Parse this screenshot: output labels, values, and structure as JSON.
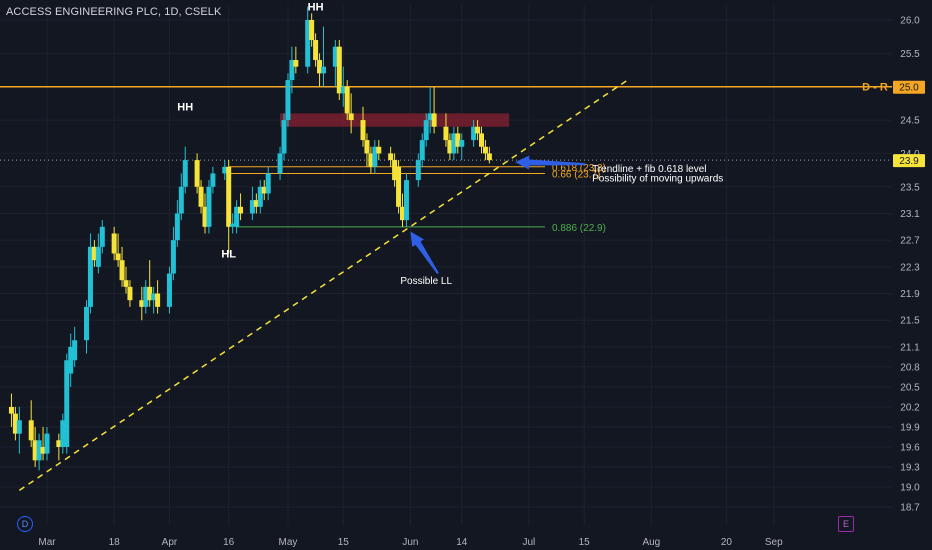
{
  "symbol_title": "ACCESS ENGINEERING PLC, 1D, CSELK",
  "colors": {
    "background": "#131722",
    "bull": "#22c0d4",
    "bear": "#f5e33a",
    "resistance_line": "#f5a623",
    "fib_line": "#f5a623",
    "fib_886_line": "#4caf50",
    "trendline": "#f5e33a",
    "zone": "#7a1f2e",
    "arrow": "#2f5fe6",
    "axis_text": "#b2b5be",
    "price_tag": "#f5a623"
  },
  "badges": {
    "dividend": "D",
    "earnings": "E"
  },
  "chart_data": {
    "type": "candlestick",
    "title": "ACCESS ENGINEERING PLC, 1D, CSELK",
    "y_ticks": [
      "26.0",
      "25.5",
      "24.5",
      "24.0",
      "23.5",
      "23.1",
      "22.7",
      "22.3",
      "21.9",
      "21.5",
      "21.1",
      "20.8",
      "20.5",
      "20.2",
      "19.9",
      "19.6",
      "19.3",
      "19.0",
      "18.7"
    ],
    "x_ticks": [
      "Mar",
      "18",
      "Apr",
      "16",
      "May",
      "15",
      "Jun",
      "14",
      "Jul",
      "15",
      "Aug",
      "20",
      "Sep"
    ],
    "ylim": [
      18.6,
      26.3
    ],
    "x_range": [
      "2024-02-23",
      "2024-09-12"
    ],
    "current_price": "23.9",
    "resistance": {
      "label": "D - R",
      "price": "25.0",
      "value": 25.0
    },
    "fib_levels": [
      {
        "label": "0.618 (23.8)",
        "value": 23.8,
        "color": "#f5a623"
      },
      {
        "label": "0.66 (23.7)",
        "value": 23.7,
        "color": "#f5a623"
      },
      {
        "label": "0.886 (22.9)",
        "value": 22.9,
        "color": "#4caf50"
      }
    ],
    "zone": {
      "from": "2024-04-29",
      "to": "2024-06-26",
      "low": 24.4,
      "high": 24.6
    },
    "trendline": {
      "start": [
        "2024-02-23",
        18.95
      ],
      "end": [
        "2024-07-26",
        25.1
      ]
    },
    "annotations": [
      {
        "text": "HH",
        "date": "2024-04-05",
        "price": 24.7,
        "color": "#ffffff"
      },
      {
        "text": "HL",
        "date": "2024-04-16",
        "price": 22.5,
        "color": "#ffffff"
      },
      {
        "text": "HH",
        "date": "2024-05-08",
        "price": 26.2,
        "color": "#ffffff"
      },
      {
        "text": "Possible LL",
        "date": "2024-06-05",
        "price": 22.1,
        "color": "#ffffff"
      },
      {
        "text": "Trendline + fib 0.618 level",
        "date": "2024-07-17",
        "price": 23.78,
        "color": "#ffffff"
      },
      {
        "text": "Possibility of moving upwards",
        "date": "2024-07-17",
        "price": 23.64,
        "color": "#ffffff"
      }
    ],
    "candles": [
      {
        "d": "2024-02-21",
        "o": 20.2,
        "h": 20.4,
        "l": 19.9,
        "c": 20.1
      },
      {
        "d": "2024-02-22",
        "o": 20.1,
        "h": 20.2,
        "l": 19.7,
        "c": 19.8
      },
      {
        "d": "2024-02-23",
        "o": 19.8,
        "h": 20.2,
        "l": 19.5,
        "c": 20.0
      },
      {
        "d": "2024-02-26",
        "o": 20.0,
        "h": 20.3,
        "l": 19.6,
        "c": 19.7
      },
      {
        "d": "2024-02-27",
        "o": 19.7,
        "h": 19.9,
        "l": 19.3,
        "c": 19.4
      },
      {
        "d": "2024-02-28",
        "o": 19.4,
        "h": 19.8,
        "l": 19.25,
        "c": 19.7
      },
      {
        "d": "2024-02-29",
        "o": 19.6,
        "h": 19.9,
        "l": 19.4,
        "c": 19.5
      },
      {
        "d": "2024-03-01",
        "o": 19.5,
        "h": 19.9,
        "l": 19.4,
        "c": 19.8
      },
      {
        "d": "2024-03-04",
        "o": 19.7,
        "h": 19.8,
        "l": 19.4,
        "c": 19.6
      },
      {
        "d": "2024-03-05",
        "o": 19.6,
        "h": 20.1,
        "l": 19.5,
        "c": 20.0
      },
      {
        "d": "2024-03-06",
        "o": 19.6,
        "h": 21.0,
        "l": 19.5,
        "c": 20.9
      },
      {
        "d": "2024-03-07",
        "o": 20.7,
        "h": 21.3,
        "l": 20.5,
        "c": 21.1
      },
      {
        "d": "2024-03-08",
        "o": 20.9,
        "h": 21.4,
        "l": 20.8,
        "c": 21.2
      },
      {
        "d": "2024-03-11",
        "o": 21.2,
        "h": 21.8,
        "l": 21.0,
        "c": 21.7
      },
      {
        "d": "2024-03-12",
        "o": 21.7,
        "h": 22.8,
        "l": 21.6,
        "c": 22.6
      },
      {
        "d": "2024-03-13",
        "o": 22.6,
        "h": 22.7,
        "l": 22.3,
        "c": 22.4
      },
      {
        "d": "2024-03-14",
        "o": 22.3,
        "h": 22.8,
        "l": 22.2,
        "c": 22.6
      },
      {
        "d": "2024-03-15",
        "o": 22.6,
        "h": 23.0,
        "l": 22.5,
        "c": 22.9
      },
      {
        "d": "2024-03-18",
        "o": 22.8,
        "h": 22.9,
        "l": 22.4,
        "c": 22.5
      },
      {
        "d": "2024-03-19",
        "o": 22.5,
        "h": 22.8,
        "l": 22.3,
        "c": 22.4
      },
      {
        "d": "2024-03-20",
        "o": 22.4,
        "h": 22.6,
        "l": 22.0,
        "c": 22.1
      },
      {
        "d": "2024-03-21",
        "o": 22.1,
        "h": 22.3,
        "l": 21.9,
        "c": 22.0
      },
      {
        "d": "2024-03-22",
        "o": 22.0,
        "h": 22.1,
        "l": 21.7,
        "c": 21.8
      },
      {
        "d": "2024-03-25",
        "o": 21.8,
        "h": 22.0,
        "l": 21.5,
        "c": 21.7
      },
      {
        "d": "2024-03-26",
        "o": 21.7,
        "h": 22.1,
        "l": 21.6,
        "c": 22.0
      },
      {
        "d": "2024-03-27",
        "o": 22.0,
        "h": 22.4,
        "l": 21.7,
        "c": 21.8
      },
      {
        "d": "2024-03-28",
        "o": 21.8,
        "h": 22.0,
        "l": 21.6,
        "c": 21.9
      },
      {
        "d": "2024-03-29",
        "o": 21.9,
        "h": 22.1,
        "l": 21.6,
        "c": 21.7
      },
      {
        "d": "2024-04-01",
        "o": 21.7,
        "h": 22.3,
        "l": 21.6,
        "c": 22.2
      },
      {
        "d": "2024-04-02",
        "o": 22.2,
        "h": 22.9,
        "l": 22.1,
        "c": 22.7
      },
      {
        "d": "2024-04-03",
        "o": 22.7,
        "h": 23.3,
        "l": 22.6,
        "c": 23.1
      },
      {
        "d": "2024-04-04",
        "o": 23.1,
        "h": 23.7,
        "l": 23.0,
        "c": 23.5
      },
      {
        "d": "2024-04-05",
        "o": 23.5,
        "h": 24.1,
        "l": 23.4,
        "c": 23.9
      },
      {
        "d": "2024-04-08",
        "o": 23.9,
        "h": 24.0,
        "l": 23.4,
        "c": 23.5
      },
      {
        "d": "2024-04-09",
        "o": 23.5,
        "h": 23.6,
        "l": 23.1,
        "c": 23.2
      },
      {
        "d": "2024-04-10",
        "o": 23.2,
        "h": 23.4,
        "l": 22.8,
        "c": 22.9
      },
      {
        "d": "2024-04-11",
        "o": 22.9,
        "h": 23.6,
        "l": 22.8,
        "c": 23.5
      },
      {
        "d": "2024-04-12",
        "o": 23.5,
        "h": 23.8,
        "l": 23.4,
        "c": 23.7
      },
      {
        "d": "2024-04-15",
        "o": 23.7,
        "h": 23.9,
        "l": 23.6,
        "c": 23.8
      },
      {
        "d": "2024-04-16",
        "o": 23.8,
        "h": 23.9,
        "l": 22.5,
        "c": 22.9
      },
      {
        "d": "2024-04-17",
        "o": 22.9,
        "h": 23.1,
        "l": 22.8,
        "c": 22.95
      },
      {
        "d": "2024-04-18",
        "o": 22.9,
        "h": 23.3,
        "l": 22.8,
        "c": 23.2
      },
      {
        "d": "2024-04-19",
        "o": 23.2,
        "h": 23.4,
        "l": 23.0,
        "c": 23.1
      },
      {
        "d": "2024-04-22",
        "o": 23.1,
        "h": 23.5,
        "l": 23.0,
        "c": 23.3
      },
      {
        "d": "2024-04-23",
        "o": 23.3,
        "h": 23.4,
        "l": 23.1,
        "c": 23.2
      },
      {
        "d": "2024-04-24",
        "o": 23.2,
        "h": 23.6,
        "l": 23.1,
        "c": 23.5
      },
      {
        "d": "2024-04-25",
        "o": 23.5,
        "h": 23.6,
        "l": 23.3,
        "c": 23.4
      },
      {
        "d": "2024-04-26",
        "o": 23.4,
        "h": 23.8,
        "l": 23.3,
        "c": 23.7
      },
      {
        "d": "2024-04-29",
        "o": 23.7,
        "h": 24.1,
        "l": 23.6,
        "c": 24.0
      },
      {
        "d": "2024-04-30",
        "o": 24.0,
        "h": 24.6,
        "l": 23.9,
        "c": 24.5
      },
      {
        "d": "2024-05-01",
        "o": 24.5,
        "h": 25.2,
        "l": 24.4,
        "c": 25.1
      },
      {
        "d": "2024-05-02",
        "o": 25.1,
        "h": 25.6,
        "l": 24.9,
        "c": 25.4
      },
      {
        "d": "2024-05-03",
        "o": 25.4,
        "h": 25.6,
        "l": 25.2,
        "c": 25.3
      },
      {
        "d": "2024-05-06",
        "o": 25.3,
        "h": 26.2,
        "l": 25.2,
        "c": 26.0
      },
      {
        "d": "2024-05-07",
        "o": 26.0,
        "h": 26.1,
        "l": 25.6,
        "c": 25.7
      },
      {
        "d": "2024-05-08",
        "o": 25.7,
        "h": 25.8,
        "l": 25.3,
        "c": 25.4
      },
      {
        "d": "2024-05-09",
        "o": 25.4,
        "h": 25.5,
        "l": 25.0,
        "c": 25.2
      },
      {
        "d": "2024-05-10",
        "o": 25.2,
        "h": 25.9,
        "l": 25.0,
        "c": 25.3
      },
      {
        "d": "2024-05-13",
        "o": 25.3,
        "h": 25.7,
        "l": 25.0,
        "c": 25.6
      },
      {
        "d": "2024-05-14",
        "o": 25.6,
        "h": 25.7,
        "l": 24.8,
        "c": 24.9
      },
      {
        "d": "2024-05-15",
        "o": 24.9,
        "h": 25.3,
        "l": 24.7,
        "c": 25.0
      },
      {
        "d": "2024-05-16",
        "o": 25.0,
        "h": 25.1,
        "l": 24.5,
        "c": 24.6
      },
      {
        "d": "2024-05-17",
        "o": 24.6,
        "h": 24.9,
        "l": 24.3,
        "c": 24.5
      },
      {
        "d": "2024-05-20",
        "o": 24.5,
        "h": 24.7,
        "l": 24.1,
        "c": 24.2
      },
      {
        "d": "2024-05-21",
        "o": 24.2,
        "h": 24.3,
        "l": 23.8,
        "c": 24.0
      },
      {
        "d": "2024-05-22",
        "o": 24.0,
        "h": 24.1,
        "l": 23.7,
        "c": 23.8
      },
      {
        "d": "2024-05-23",
        "o": 23.8,
        "h": 24.2,
        "l": 23.7,
        "c": 24.1
      },
      {
        "d": "2024-05-24",
        "o": 24.1,
        "h": 24.2,
        "l": 23.9,
        "c": 24.0
      },
      {
        "d": "2024-05-27",
        "o": 24.0,
        "h": 24.1,
        "l": 23.8,
        "c": 23.9
      },
      {
        "d": "2024-05-28",
        "o": 23.9,
        "h": 24.0,
        "l": 23.5,
        "c": 23.6
      },
      {
        "d": "2024-05-29",
        "o": 23.8,
        "h": 23.9,
        "l": 23.1,
        "c": 23.2
      },
      {
        "d": "2024-05-30",
        "o": 23.2,
        "h": 23.4,
        "l": 22.9,
        "c": 23.0
      },
      {
        "d": "2024-05-31",
        "o": 23.0,
        "h": 23.7,
        "l": 22.9,
        "c": 23.6
      },
      {
        "d": "2024-06-03",
        "o": 23.6,
        "h": 24.0,
        "l": 23.5,
        "c": 23.9
      },
      {
        "d": "2024-06-04",
        "o": 23.9,
        "h": 24.3,
        "l": 23.8,
        "c": 24.2
      },
      {
        "d": "2024-06-05",
        "o": 24.2,
        "h": 24.6,
        "l": 24.1,
        "c": 24.5
      },
      {
        "d": "2024-06-06",
        "o": 24.5,
        "h": 25.0,
        "l": 24.3,
        "c": 24.6
      },
      {
        "d": "2024-06-07",
        "o": 24.6,
        "h": 25.0,
        "l": 24.3,
        "c": 24.4
      },
      {
        "d": "2024-06-10",
        "o": 24.4,
        "h": 24.6,
        "l": 24.1,
        "c": 24.2
      },
      {
        "d": "2024-06-11",
        "o": 24.2,
        "h": 24.3,
        "l": 23.9,
        "c": 24.0
      },
      {
        "d": "2024-06-12",
        "o": 24.0,
        "h": 24.4,
        "l": 23.9,
        "c": 24.3
      },
      {
        "d": "2024-06-13",
        "o": 24.3,
        "h": 24.4,
        "l": 24.0,
        "c": 24.1
      },
      {
        "d": "2024-06-14",
        "o": 24.1,
        "h": 24.3,
        "l": 23.9,
        "c": 24.2
      },
      {
        "d": "2024-06-17",
        "o": 24.2,
        "h": 24.5,
        "l": 24.1,
        "c": 24.4
      },
      {
        "d": "2024-06-18",
        "o": 24.4,
        "h": 24.5,
        "l": 24.2,
        "c": 24.3
      },
      {
        "d": "2024-06-19",
        "o": 24.3,
        "h": 24.4,
        "l": 24.0,
        "c": 24.1
      },
      {
        "d": "2024-06-20",
        "o": 24.1,
        "h": 24.2,
        "l": 23.9,
        "c": 24.0
      },
      {
        "d": "2024-06-21",
        "o": 24.0,
        "h": 24.1,
        "l": 23.85,
        "c": 23.9
      }
    ]
  }
}
